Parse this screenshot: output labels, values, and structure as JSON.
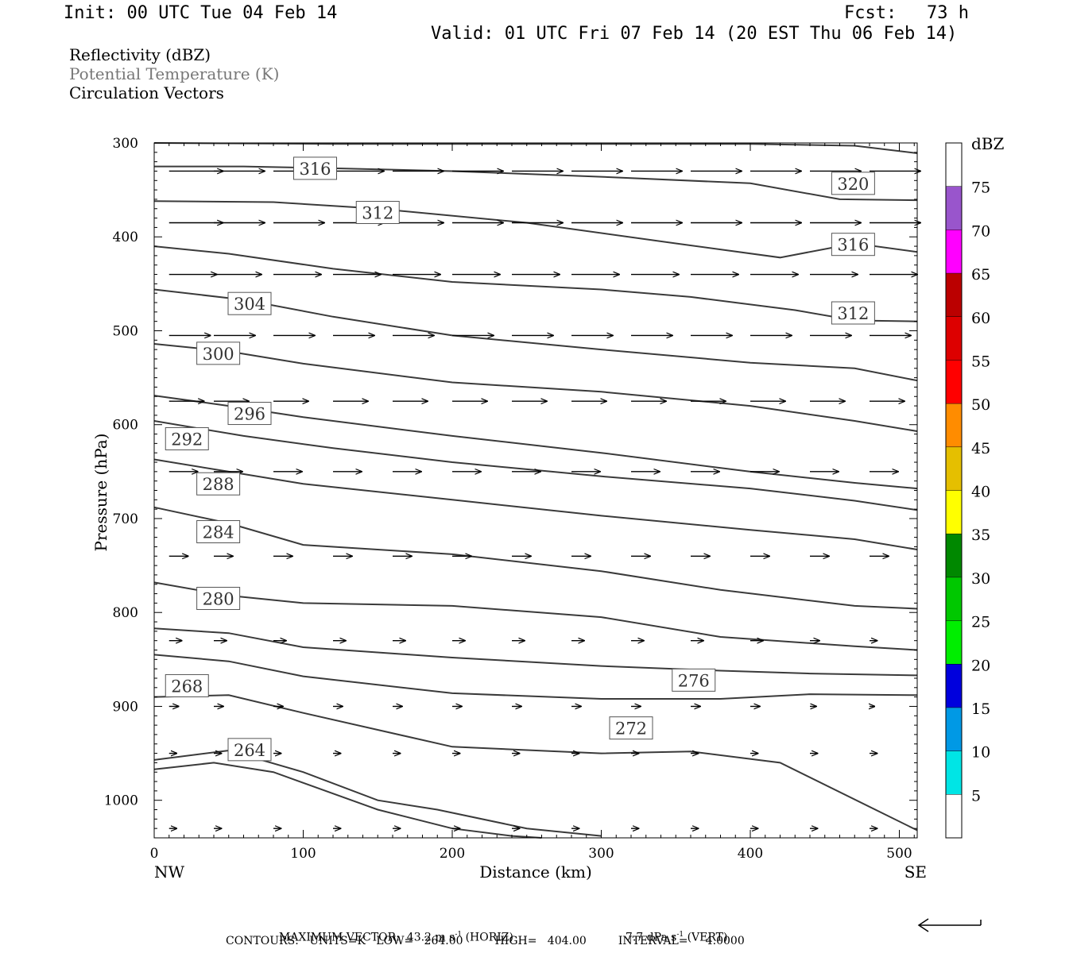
{
  "header": {
    "init": "Init: 00 UTC Tue 04 Feb 14",
    "fcst_label": "Fcst:",
    "fcst_value": "73 h",
    "valid": "Valid: 01 UTC Fri 07 Feb 14 (20 EST Thu 06 Feb 14)"
  },
  "legend": {
    "reflectivity": "Reflectivity (dBZ)",
    "potential_temperature": "Potential Temperature (K)",
    "circulation_vectors": "Circulation Vectors"
  },
  "colors": {
    "theta_contour": "#3a3a3a",
    "pt_legend_text": "#777777",
    "axis": "#000000"
  },
  "footer": {
    "max_vector_label": "MAXIMUM VECTOR:",
    "max_vector_horiz": "43.2 m s",
    "horiz_exp": "-1",
    "horiz_tag": "(HORIZ)",
    "max_vector_vert": "7.7 dPa s",
    "vert_exp": "-1",
    "vert_tag": "(VERT)",
    "contours_line": "CONTOURS:   UNITS=K   LOW=   264.00         HIGH=   404.00         INTERVAL=     4.0000"
  },
  "chart_data": {
    "type": "cross-section",
    "xlabel": "Distance (km)",
    "ylabel": "Pressure (hPa)",
    "xlim": [
      0,
      512
    ],
    "ylim": [
      1040,
      300
    ],
    "x_ticks": [
      0,
      100,
      200,
      300,
      400,
      500
    ],
    "y_ticks": [
      300,
      400,
      500,
      600,
      700,
      800,
      900,
      1000
    ],
    "x_end_labels": {
      "left": "NW",
      "right": "SE"
    },
    "colorbar": {
      "title": "dBZ",
      "levels": [
        5,
        10,
        15,
        20,
        25,
        30,
        35,
        40,
        45,
        50,
        55,
        60,
        65,
        70,
        75
      ],
      "colors": [
        "#ffffff",
        "#00e5e5",
        "#0099e5",
        "#0000dd",
        "#00ee00",
        "#00c800",
        "#008800",
        "#ffff00",
        "#e5bf00",
        "#ff8c00",
        "#ff0000",
        "#dd0000",
        "#bb0000",
        "#ff00ff",
        "#9955cc",
        "#ffffff"
      ]
    },
    "contours": [
      {
        "value": 320,
        "label": "320",
        "label_x": 469,
        "label_y": 343,
        "points": [
          [
            0,
            300
          ],
          [
            120,
            301
          ],
          [
            250,
            301
          ],
          [
            400,
            301
          ],
          [
            470,
            303
          ],
          [
            512,
            311
          ]
        ]
      },
      {
        "value": 316,
        "label": "316",
        "label_x": 108,
        "label_y": 327,
        "points": [
          [
            0,
            325
          ],
          [
            60,
            325
          ],
          [
            120,
            327
          ],
          [
            200,
            330
          ],
          [
            300,
            336
          ],
          [
            400,
            343
          ],
          [
            460,
            360
          ],
          [
            512,
            361
          ]
        ]
      },
      {
        "value": 316,
        "label": "316",
        "label_x": 469,
        "label_y": 408,
        "points": [
          [
            0,
            362
          ],
          [
            80,
            363
          ],
          [
            150,
            370
          ],
          [
            250,
            385
          ],
          [
            350,
            407
          ],
          [
            420,
            422
          ],
          [
            470,
            407
          ],
          [
            512,
            416
          ]
        ]
      },
      {
        "value": 312,
        "label": "312",
        "label_x": 150,
        "label_y": 374,
        "points": [
          [
            0,
            410
          ],
          [
            50,
            418
          ],
          [
            120,
            434
          ],
          [
            200,
            448
          ],
          [
            300,
            456
          ],
          [
            360,
            464
          ],
          [
            430,
            478
          ],
          [
            470,
            489
          ],
          [
            512,
            490
          ]
        ]
      },
      {
        "value": 312,
        "label": "312",
        "label_x": 469,
        "label_y": 481,
        "points": [
          [
            0,
            456
          ],
          [
            60,
            467
          ],
          [
            120,
            485
          ],
          [
            200,
            505
          ],
          [
            300,
            520
          ],
          [
            400,
            534
          ],
          [
            470,
            540
          ],
          [
            512,
            553
          ]
        ]
      },
      {
        "value": 304,
        "label": "304",
        "label_x": 64,
        "label_y": 471,
        "points": [
          [
            0,
            514
          ],
          [
            50,
            522
          ],
          [
            100,
            535
          ],
          [
            200,
            555
          ],
          [
            300,
            565
          ],
          [
            400,
            580
          ],
          [
            470,
            596
          ],
          [
            512,
            607
          ]
        ]
      },
      {
        "value": 300,
        "label": "300",
        "label_x": 43,
        "label_y": 524,
        "points": [
          [
            0,
            569
          ],
          [
            50,
            580
          ],
          [
            100,
            592
          ],
          [
            200,
            612
          ],
          [
            300,
            630
          ],
          [
            400,
            650
          ],
          [
            470,
            662
          ],
          [
            512,
            668
          ]
        ]
      },
      {
        "value": 296,
        "label": "296",
        "label_x": 64,
        "label_y": 588,
        "points": [
          [
            0,
            596
          ],
          [
            60,
            612
          ],
          [
            120,
            625
          ],
          [
            200,
            640
          ],
          [
            300,
            655
          ],
          [
            400,
            668
          ],
          [
            470,
            681
          ],
          [
            512,
            691
          ]
        ]
      },
      {
        "value": 292,
        "label": "292",
        "label_x": 22,
        "label_y": 615,
        "points": [
          [
            0,
            637
          ],
          [
            50,
            650
          ],
          [
            100,
            663
          ],
          [
            200,
            680
          ],
          [
            300,
            697
          ],
          [
            400,
            712
          ],
          [
            470,
            722
          ],
          [
            512,
            733
          ]
        ]
      },
      {
        "value": 288,
        "label": "288",
        "label_x": 43,
        "label_y": 663,
        "points": [
          [
            0,
            688
          ],
          [
            50,
            705
          ],
          [
            100,
            728
          ],
          [
            200,
            738
          ],
          [
            300,
            756
          ],
          [
            380,
            776
          ],
          [
            470,
            793
          ],
          [
            512,
            796
          ]
        ]
      },
      {
        "value": 284,
        "label": "284",
        "label_x": 43,
        "label_y": 714,
        "points": [
          [
            0,
            768
          ],
          [
            50,
            782
          ],
          [
            100,
            790
          ],
          [
            200,
            793
          ],
          [
            300,
            805
          ],
          [
            380,
            826
          ],
          [
            470,
            836
          ],
          [
            512,
            840
          ]
        ]
      },
      {
        "value": 280,
        "label": "280",
        "label_x": 43,
        "label_y": 785,
        "points": [
          [
            0,
            817
          ],
          [
            50,
            822
          ],
          [
            100,
            837
          ],
          [
            200,
            848
          ],
          [
            300,
            857
          ],
          [
            380,
            862
          ],
          [
            440,
            865
          ],
          [
            512,
            867
          ]
        ]
      },
      {
        "value": 276,
        "label": "276",
        "label_x": 362,
        "label_y": 872,
        "points": [
          [
            0,
            845
          ],
          [
            50,
            852
          ],
          [
            100,
            868
          ],
          [
            200,
            886
          ],
          [
            300,
            892
          ],
          [
            380,
            892
          ],
          [
            440,
            887
          ],
          [
            512,
            888
          ]
        ]
      },
      {
        "value": 272,
        "label": "272",
        "label_x": 320,
        "label_y": 923,
        "points": [
          [
            0,
            890
          ],
          [
            50,
            888
          ],
          [
            100,
            907
          ],
          [
            200,
            943
          ],
          [
            300,
            950
          ],
          [
            360,
            948
          ],
          [
            420,
            960
          ],
          [
            512,
            1032
          ]
        ]
      },
      {
        "value": 268,
        "label": "268",
        "label_x": 22,
        "label_y": 878,
        "points": [
          [
            0,
            957
          ],
          [
            50,
            947
          ],
          [
            100,
            970
          ],
          [
            150,
            1000
          ],
          [
            190,
            1010
          ],
          [
            250,
            1030
          ],
          [
            300,
            1038
          ]
        ]
      },
      {
        "value": 264,
        "label": "264",
        "label_x": 64,
        "label_y": 946,
        "points": [
          [
            0,
            967
          ],
          [
            40,
            960
          ],
          [
            80,
            970
          ],
          [
            150,
            1010
          ],
          [
            200,
            1030
          ],
          [
            240,
            1038
          ],
          [
            260,
            1040
          ]
        ]
      }
    ],
    "vectors_x": [
      10,
      40,
      80,
      120,
      160,
      200,
      240,
      280,
      320,
      360,
      400,
      440,
      480
    ],
    "vectors_p": [
      330,
      385,
      440,
      505,
      575,
      650,
      740,
      830,
      900,
      950,
      1030
    ],
    "vector_magnitude": [
      [
        0.85,
        0.8,
        0.8,
        0.8,
        0.8,
        0.8,
        0.8,
        0.8,
        0.8,
        0.8,
        0.8,
        0.8,
        0.8
      ],
      [
        0.85,
        0.8,
        0.8,
        0.8,
        0.8,
        0.8,
        0.8,
        0.8,
        0.8,
        0.8,
        0.8,
        0.8,
        0.8
      ],
      [
        0.75,
        0.75,
        0.75,
        0.75,
        0.75,
        0.75,
        0.75,
        0.75,
        0.75,
        0.75,
        0.75,
        0.75,
        0.75
      ],
      [
        0.65,
        0.65,
        0.65,
        0.65,
        0.65,
        0.65,
        0.65,
        0.65,
        0.65,
        0.65,
        0.65,
        0.65,
        0.65
      ],
      [
        0.55,
        0.55,
        0.55,
        0.55,
        0.55,
        0.55,
        0.55,
        0.55,
        0.55,
        0.55,
        0.55,
        0.55,
        0.55
      ],
      [
        0.45,
        0.45,
        0.45,
        0.45,
        0.45,
        0.45,
        0.45,
        0.45,
        0.45,
        0.45,
        0.45,
        0.45,
        0.45
      ],
      [
        0.3,
        0.3,
        0.3,
        0.3,
        0.3,
        0.3,
        0.3,
        0.3,
        0.3,
        0.3,
        0.3,
        0.3,
        0.3
      ],
      [
        0.2,
        0.2,
        0.2,
        0.2,
        0.2,
        0.2,
        0.2,
        0.2,
        0.2,
        0.2,
        0.2,
        0.15,
        0.12
      ],
      [
        0.15,
        0.15,
        0.15,
        0.15,
        0.15,
        0.15,
        0.15,
        0.15,
        0.15,
        0.15,
        0.15,
        0.1,
        0.08
      ],
      [
        0.12,
        0.12,
        0.12,
        0.12,
        0.12,
        0.12,
        0.12,
        0.12,
        0.12,
        0.12,
        0.12,
        0.12,
        0.12
      ],
      [
        0.12,
        0.12,
        0.12,
        0.12,
        0.12,
        0.12,
        0.12,
        0.12,
        0.12,
        0.12,
        0.12,
        0.12,
        0.12
      ]
    ]
  }
}
